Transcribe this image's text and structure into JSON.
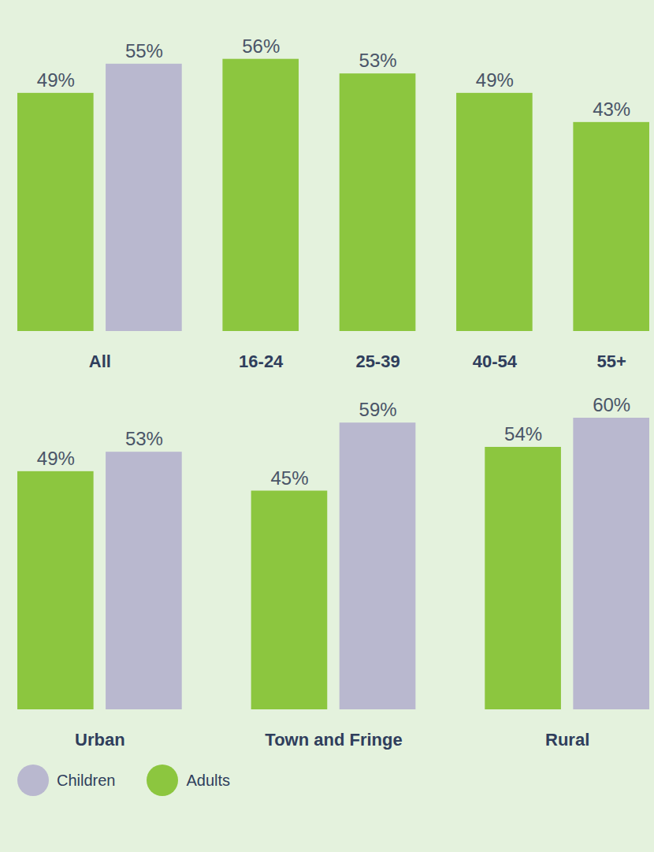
{
  "chart_data": [
    {
      "type": "bar",
      "categories": [
        "All",
        "16-24",
        "25-39",
        "40-54",
        "55+"
      ],
      "series": [
        {
          "name": "Adults",
          "color": "#8cc63f",
          "values": [
            49,
            56,
            53,
            49,
            43
          ],
          "value_labels": [
            "49%",
            "56%",
            "53%",
            "49%",
            "43%"
          ]
        },
        {
          "name": "Children",
          "color": "#b9b8cf",
          "values": [
            55,
            null,
            null,
            null,
            null
          ],
          "value_labels": [
            "55%",
            null,
            null,
            null,
            null
          ]
        }
      ],
      "ylim": [
        0,
        60
      ],
      "tick_labels": false,
      "data_labels": true
    },
    {
      "type": "bar",
      "categories": [
        "Urban",
        "Town and Fringe",
        "Rural"
      ],
      "series": [
        {
          "name": "Adults",
          "color": "#8cc63f",
          "values": [
            49,
            45,
            54
          ],
          "value_labels": [
            "49%",
            "45%",
            "54%"
          ]
        },
        {
          "name": "Children",
          "color": "#b9b8cf",
          "values": [
            53,
            59,
            60
          ],
          "value_labels": [
            "53%",
            "59%",
            "60%"
          ]
        }
      ],
      "ylim": [
        0,
        60
      ],
      "tick_labels": false,
      "data_labels": true,
      "legend": "bottom"
    }
  ]
}
